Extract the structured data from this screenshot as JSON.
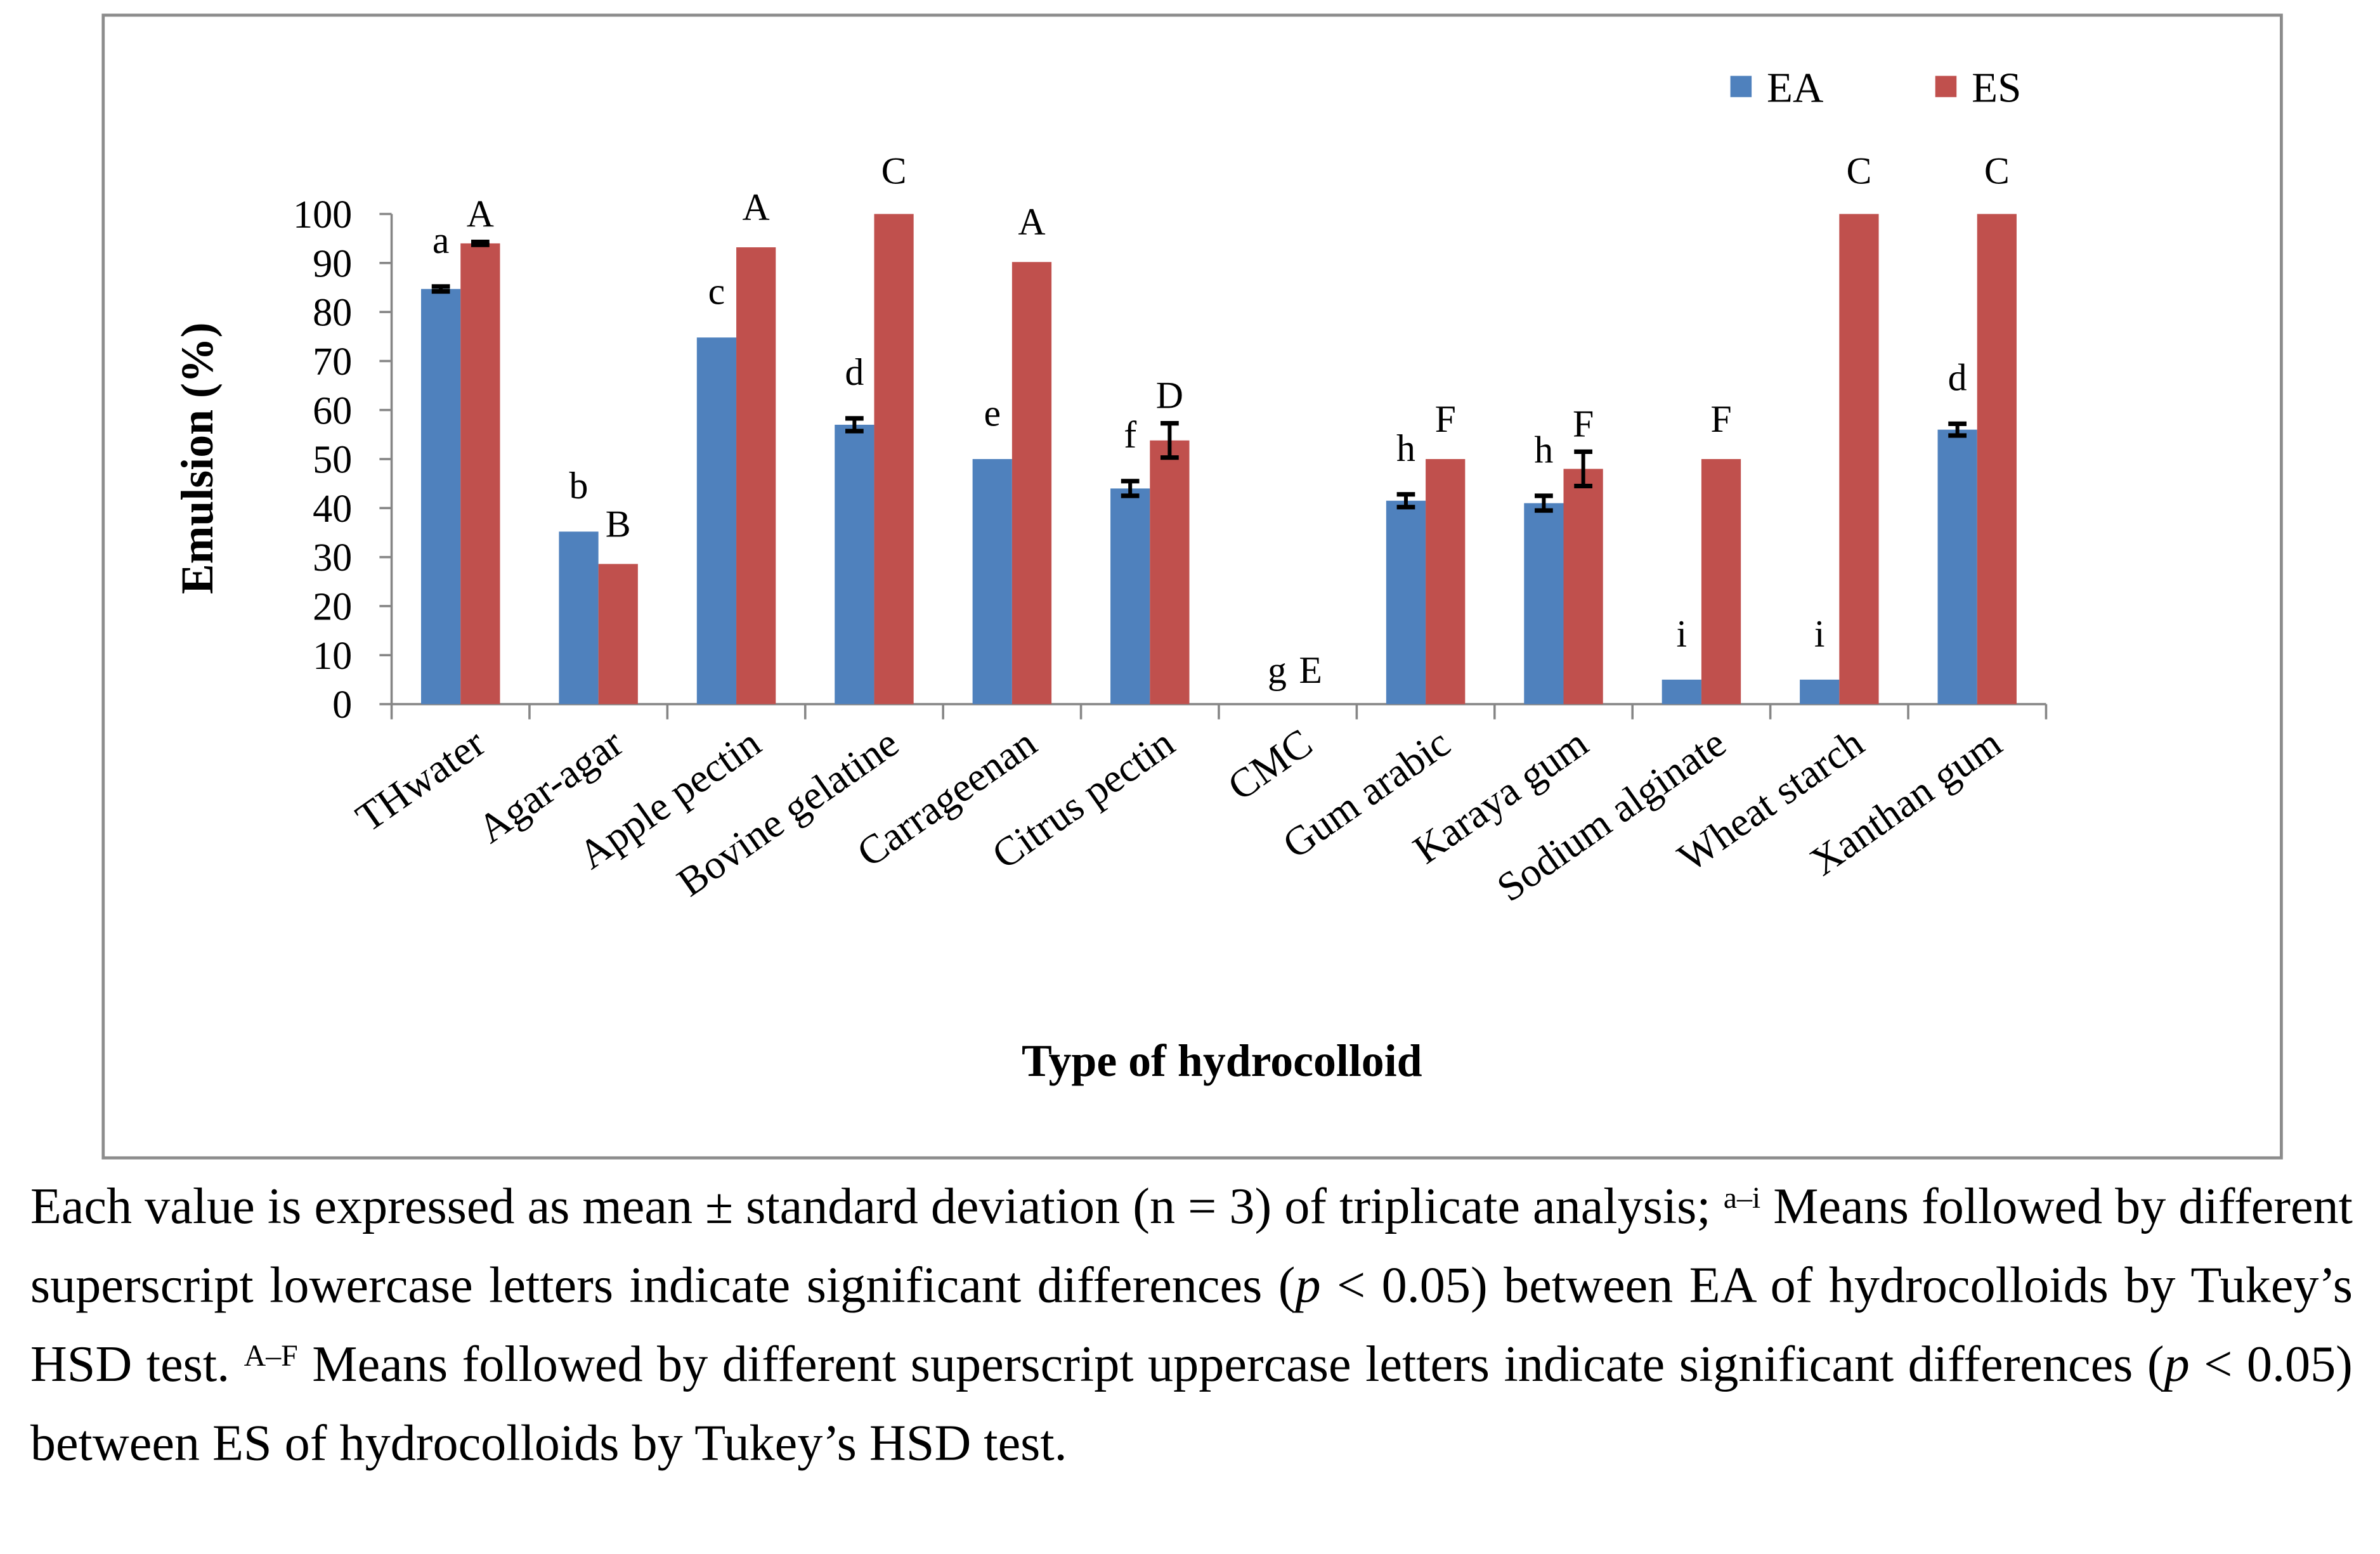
{
  "chart_data": {
    "type": "bar",
    "title": "",
    "xlabel": "Type of hydrocolloid",
    "ylabel": "Emulsion (%)",
    "ylim": [
      0,
      100
    ],
    "yticks": [
      0,
      10,
      20,
      30,
      40,
      50,
      60,
      70,
      80,
      90,
      100
    ],
    "legend_position": "top-right",
    "categories": [
      "THwater",
      "Agar-agar",
      "Apple pectin",
      "Bovine gelatine",
      "Carrageenan",
      "Citrus pectin",
      "CMC",
      "Gum arabic",
      "Karaya gum",
      "Sodium alginate",
      "Wheat starch",
      "Xanthan gum"
    ],
    "series": [
      {
        "name": "EA",
        "color": "#4f81bd",
        "values": [
          84.7,
          35.2,
          74.8,
          57,
          50,
          44,
          0,
          41.5,
          41,
          5,
          5,
          56
        ],
        "errors": [
          0.5,
          0,
          0,
          1.3,
          0,
          1.5,
          0,
          1.3,
          1.5,
          0,
          0,
          1.2
        ],
        "letters": [
          "a",
          "b",
          "c",
          "d",
          "e",
          "f",
          "g",
          "h",
          "h",
          "i",
          "i",
          "d"
        ]
      },
      {
        "name": "ES",
        "color": "#c0504d",
        "values": [
          94,
          28.6,
          93.2,
          100,
          90.2,
          53.8,
          0,
          50,
          48,
          50,
          100,
          100
        ],
        "errors": [
          0.3,
          0,
          0,
          0,
          0,
          3.5,
          0,
          0,
          3.5,
          0,
          0,
          0
        ],
        "letters": [
          "A",
          "B",
          "A",
          "C",
          "A",
          "D",
          "E",
          "F",
          "F",
          "F",
          "C",
          "C"
        ]
      }
    ]
  },
  "caption": {
    "part1": "Each value is expressed as mean ± standard deviation (n = 3) of triplicate analysis; ",
    "sup1": "a–i",
    "part2": " Means followed by different superscript lowercase letters indicate significant differences (",
    "p1": "p",
    "part3": " < 0.05) between EA of hydrocolloids by Tukey’s HSD test. ",
    "sup2": "A–F",
    "part4": " Means followed by different superscript uppercase letters indicate significant differences (",
    "p2": "p",
    "part5": " < 0.05) between ES of hydrocolloids by Tukey’s HSD test."
  }
}
